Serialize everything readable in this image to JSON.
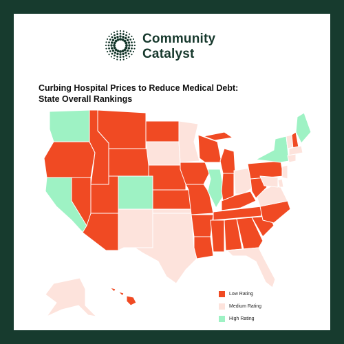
{
  "brand": {
    "line1": "Community",
    "line2": "Catalyst",
    "color": "#16382c"
  },
  "title": {
    "line1": "Curbing Hospital Prices to Reduce Medical Debt:",
    "line2": "State Overall Rankings"
  },
  "colors": {
    "low": "#f04a23",
    "medium": "#fde3dc",
    "high": "#9ef2c4",
    "frame": "#173b2e"
  },
  "legend": [
    {
      "key": "low",
      "label": "Low Rating",
      "color": "#f04a23"
    },
    {
      "key": "medium",
      "label": "Medium Rating",
      "color": "#fde3dc"
    },
    {
      "key": "high",
      "label": "High Rating",
      "color": "#9ef2c4"
    }
  ],
  "ratings": {
    "WA": "high",
    "OR": "low",
    "CA": "high",
    "NV": "low",
    "ID": "low",
    "MT": "low",
    "WY": "low",
    "UT": "low",
    "AZ": "low",
    "CO": "high",
    "NM": "medium",
    "ND": "low",
    "SD": "medium",
    "NE": "low",
    "KS": "low",
    "OK": "medium",
    "TX": "medium",
    "MN": "medium",
    "IA": "low",
    "MO": "low",
    "AR": "low",
    "LA": "low",
    "WI": "low",
    "IL": "high",
    "MI": "low",
    "IN": "low",
    "OH": "medium",
    "KY": "low",
    "TN": "low",
    "MS": "low",
    "AL": "low",
    "GA": "low",
    "FL": "medium",
    "SC": "low",
    "NC": "low",
    "VA": "medium",
    "WV": "low",
    "PA": "low",
    "NY": "high",
    "VT": "medium",
    "NH": "low",
    "ME": "high",
    "MA": "medium",
    "CT": "medium",
    "NJ": "medium",
    "DE": "medium",
    "MD": "medium",
    "AK": "medium",
    "HI": "low"
  }
}
